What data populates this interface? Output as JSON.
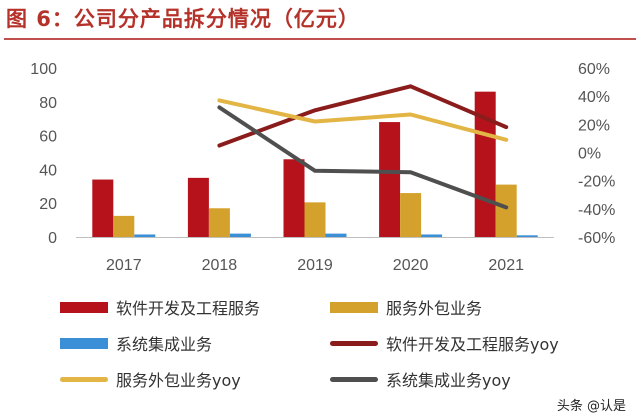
{
  "header": {
    "title": "图 6：公司分产品拆分情况（亿元）"
  },
  "watermark": "头条 @认是",
  "chart_data": {
    "type": "bar",
    "title": "图 6：公司分产品拆分情况（亿元）",
    "categories": [
      "2017",
      "2018",
      "2019",
      "2020",
      "2021"
    ],
    "y_left": {
      "min": 0,
      "max": 100,
      "ticks": [
        "0",
        "20",
        "40",
        "60",
        "80",
        "100"
      ]
    },
    "y_right": {
      "min": -60,
      "max": 60,
      "ticks": [
        "-60%",
        "-40%",
        "-20%",
        "0%",
        "20%",
        "40%",
        "60%"
      ]
    },
    "series": [
      {
        "name": "软件开发及工程服务",
        "kind": "bar",
        "axis": "left",
        "color": "#b5121b",
        "values": [
          34,
          35,
          46,
          68,
          86
        ]
      },
      {
        "name": "服务外包业务",
        "kind": "bar",
        "axis": "left",
        "color": "#d4a22c",
        "values": [
          12.5,
          17,
          20.5,
          26,
          31
        ]
      },
      {
        "name": "系统集成业务",
        "kind": "bar",
        "axis": "left",
        "color": "#3a8fd6",
        "values": [
          1.5,
          2,
          2,
          1.5,
          1
        ]
      },
      {
        "name": "软件开发及工程服务yoy",
        "kind": "line",
        "axis": "right",
        "color": "#8b1c1c",
        "values": [
          null,
          5,
          30,
          47,
          18
        ]
      },
      {
        "name": "服务外包业务yoy",
        "kind": "line",
        "axis": "right",
        "color": "#e2b544",
        "values": [
          null,
          37,
          22,
          27,
          9
        ]
      },
      {
        "name": "系统集成业务yoy",
        "kind": "line",
        "axis": "right",
        "color": "#4f4f4f",
        "values": [
          null,
          32,
          -13,
          -14,
          -39
        ]
      }
    ]
  }
}
